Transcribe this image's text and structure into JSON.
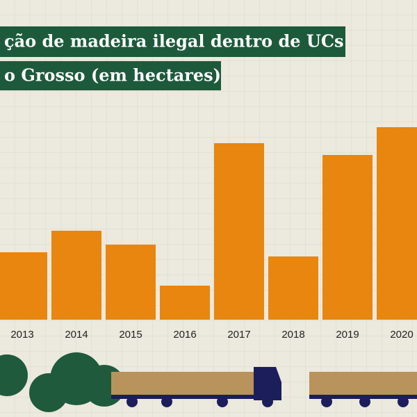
{
  "chart_data": {
    "type": "bar",
    "title": [
      "ção de madeira ilegal dentro de UCs",
      "o Grosso (em hectares)"
    ],
    "categories": [
      "2013",
      "2014",
      "2015",
      "2016",
      "2017",
      "2018",
      "2019",
      "2020"
    ],
    "values": [
      97,
      128,
      108,
      49,
      254,
      91,
      237,
      277
    ],
    "color": "#e8860f",
    "ylim": [
      0,
      300
    ]
  }
}
